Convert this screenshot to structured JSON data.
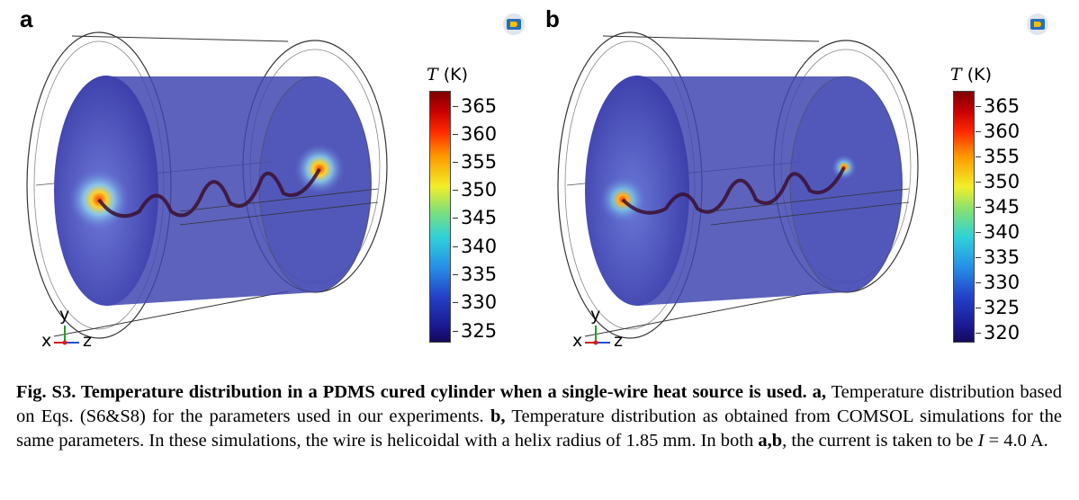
{
  "figure": {
    "panels": [
      {
        "letter": "a",
        "colorbar": {
          "title_var": "T",
          "title_unit": " (K)",
          "ticks": [
            "365",
            "360",
            "355",
            "350",
            "345",
            "340",
            "335",
            "330",
            "325"
          ]
        },
        "axes": {
          "y": "y",
          "x": "x",
          "z": "z"
        }
      },
      {
        "letter": "b",
        "colorbar": {
          "title_var": "T",
          "title_unit": " (K)",
          "ticks": [
            "365",
            "360",
            "355",
            "350",
            "345",
            "340",
            "335",
            "330",
            "325",
            "320"
          ]
        },
        "axes": {
          "y": "y",
          "x": "x",
          "z": "z"
        }
      }
    ]
  },
  "caption": {
    "heading": "Fig. S3. Temperature distribution in a PDMS cured cylinder when a single-wire heat source is used. a,",
    "text1": " Temperature distribution based on Eqs. (S6&S8) for the parameters used in our experiments. ",
    "b_label": "b,",
    "text2": " Temperature distribution as obtained from COMSOL simulations for the same parameters. In these simulations, the wire is helicoidal with a helix radius of 1.85 mm. In both ",
    "ab_label": "a,b",
    "text3": ", the current is taken to be ",
    "current_symbol": "I",
    "text4": " = 4.0 A."
  }
}
